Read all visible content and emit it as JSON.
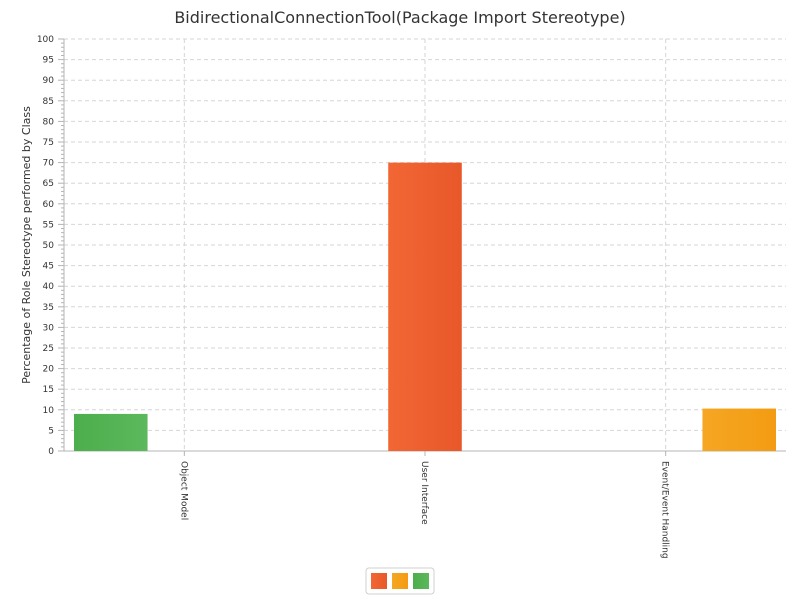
{
  "chart_data": {
    "type": "bar",
    "title": "BidirectionalConnectionTool(Package Import Stereotype)",
    "xlabel": "",
    "ylabel": "Percentage of Role Stereotype performed by Class",
    "ylim": [
      0,
      100
    ],
    "y_major_step": 5,
    "y_minor_step": 1,
    "grid": true,
    "legend_position": "bottom-center",
    "categories": [
      "Object Model",
      "User Interface",
      "Event/Event Handling"
    ],
    "series": [
      {
        "color": "#5cb85c",
        "values": [
          9,
          0,
          0
        ]
      },
      {
        "color": "#f0602e",
        "values": [
          0,
          70,
          0
        ]
      },
      {
        "color": "#f5a623",
        "values": [
          0,
          0,
          10.3
        ]
      }
    ],
    "legend_swatch_colors": [
      "#f0602e",
      "#f5a623",
      "#5cb85c"
    ]
  }
}
